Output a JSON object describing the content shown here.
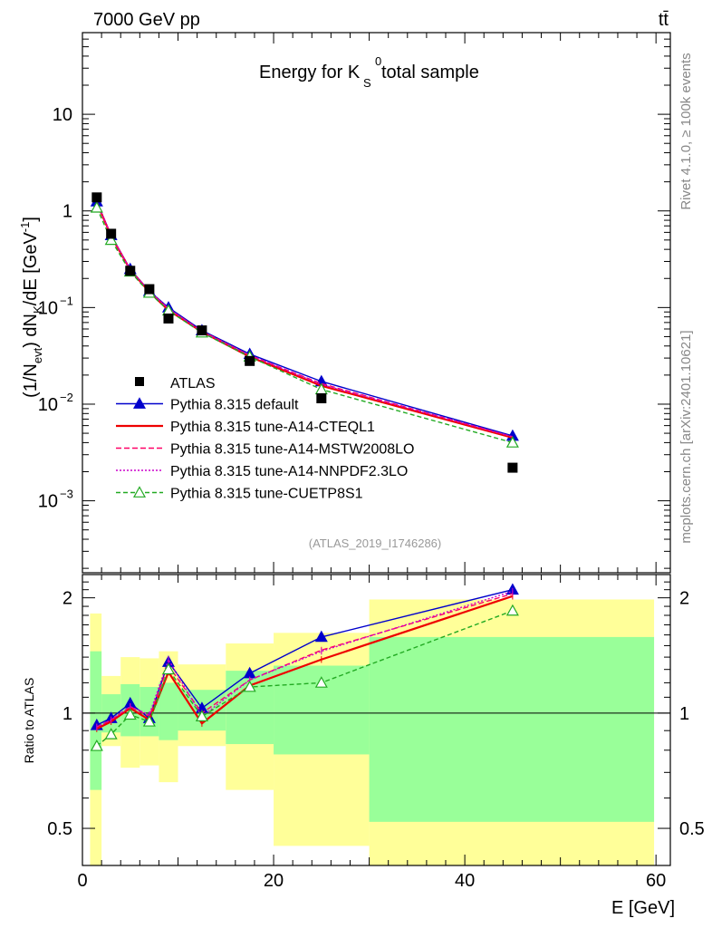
{
  "header": {
    "energy_label": "7000 GeV pp",
    "process_label": "tt̄",
    "plot_title": "Energy for K",
    "title_sup": "0",
    "title_sub": "S",
    "title_suffix": " total sample",
    "analysis_id": "(ATLAS_2019_I1746286)",
    "side_label_top": "Rivet 4.1.0, ≥ 100k events",
    "side_label_bottom": "mcplots.cern.ch [arXiv:2401.10621]"
  },
  "chart_data": {
    "type": "line",
    "x_label": "E [GeV]",
    "main_y_label": "(1/N_evt) dN_K/dE [GeV^-1]",
    "ratio_y_label": "Ratio to ATLAS",
    "x_range": [
      0,
      61.5
    ],
    "main_y_range": [
      0.00018,
      70
    ],
    "ratio_y_range": [
      0.4,
      2.3
    ],
    "x_ticks": [
      0,
      20,
      40,
      60
    ],
    "main_y_ticks": [
      {
        "value": 10,
        "label": "10"
      },
      {
        "value": 1,
        "label": "1"
      },
      {
        "value": 0.1,
        "label": "10",
        "exp": "−1"
      },
      {
        "value": 0.01,
        "label": "10",
        "exp": "−2"
      },
      {
        "value": 0.001,
        "label": "10",
        "exp": "−3"
      }
    ],
    "ratio_y_ticks": [
      {
        "value": 0.5,
        "label": "0.5"
      },
      {
        "value": 1,
        "label": "1"
      },
      {
        "value": 2,
        "label": "2"
      }
    ],
    "data": {
      "name": "ATLAS",
      "x": [
        1.5,
        3,
        5,
        7,
        9,
        12.5,
        17.5,
        25,
        45
      ],
      "y": [
        1.38,
        0.58,
        0.24,
        0.155,
        0.077,
        0.058,
        0.028,
        0.0115,
        0.0022
      ]
    },
    "bands": [
      {
        "x0": 0.8,
        "x1": 2,
        "yellow": [
          0.4,
          1.82
        ],
        "green": [
          0.63,
          1.45
        ]
      },
      {
        "x0": 2,
        "x1": 4,
        "yellow": [
          0.82,
          1.25
        ],
        "green": [
          0.89,
          1.12
        ]
      },
      {
        "x0": 4,
        "x1": 6,
        "yellow": [
          0.72,
          1.4
        ],
        "green": [
          0.87,
          1.19
        ]
      },
      {
        "x0": 6,
        "x1": 8,
        "yellow": [
          0.73,
          1.39
        ],
        "green": [
          0.87,
          1.17
        ]
      },
      {
        "x0": 8,
        "x1": 10,
        "yellow": [
          0.66,
          1.45
        ],
        "green": [
          0.85,
          1.2
        ]
      },
      {
        "x0": 10,
        "x1": 15,
        "yellow": [
          0.82,
          1.34
        ],
        "green": [
          0.9,
          1.15
        ]
      },
      {
        "x0": 15,
        "x1": 20,
        "yellow": [
          0.63,
          1.52
        ],
        "green": [
          0.83,
          1.29
        ]
      },
      {
        "x0": 20,
        "x1": 30,
        "yellow": [
          0.45,
          1.62
        ],
        "green": [
          0.78,
          1.33
        ]
      },
      {
        "x0": 30,
        "x1": 59.8,
        "yellow": [
          0.4,
          1.98
        ],
        "green": [
          0.52,
          1.58
        ]
      }
    ],
    "series": [
      {
        "name": "Pythia 8.315 default",
        "color": "#0000cc",
        "dash": "",
        "marker": "triangle",
        "y": [
          1.25,
          0.56,
          0.25,
          0.148,
          0.1,
          0.058,
          0.033,
          0.0172,
          0.0047
        ],
        "ratio": [
          0.93,
          0.97,
          1.06,
          0.97,
          1.36,
          1.03,
          1.27,
          1.58,
          2.1
        ]
      },
      {
        "name": "Pythia 8.315 tune-A14-CTEQL1",
        "color": "#ee0000",
        "dash": "",
        "marker": "none",
        "y": [
          1.22,
          0.55,
          0.245,
          0.145,
          0.094,
          0.056,
          0.031,
          0.0155,
          0.0045
        ],
        "ratio": [
          0.91,
          0.95,
          1.03,
          0.96,
          1.28,
          0.94,
          1.18,
          1.38,
          2.02
        ]
      },
      {
        "name": "Pythia 8.315 tune-A14-MSTW2008LO",
        "color": "#ff0066",
        "dash": "6,3",
        "marker": "none",
        "y": [
          1.24,
          0.56,
          0.247,
          0.147,
          0.097,
          0.057,
          0.032,
          0.0163,
          0.0046
        ],
        "ratio": [
          0.92,
          0.96,
          1.04,
          0.98,
          1.33,
          1.0,
          1.22,
          1.46,
          2.05
        ]
      },
      {
        "name": "Pythia 8.315 tune-A14-NNPDF2.3LO",
        "color": "#cc00cc",
        "dash": "2,2",
        "marker": "none",
        "y": [
          1.23,
          0.56,
          0.246,
          0.148,
          0.098,
          0.056,
          0.032,
          0.016,
          0.0046
        ],
        "ratio": [
          0.92,
          0.96,
          1.04,
          0.99,
          1.38,
          0.98,
          1.22,
          1.45,
          2.08
        ]
      },
      {
        "name": "Pythia 8.315 tune-CUETP8S1",
        "color": "#22aa22",
        "dash": "5,3",
        "marker": "open-triangle",
        "y": [
          1.08,
          0.5,
          0.235,
          0.142,
          0.093,
          0.055,
          0.031,
          0.0142,
          0.004
        ],
        "ratio": [
          0.82,
          0.88,
          0.99,
          0.95,
          1.3,
          0.98,
          1.17,
          1.2,
          1.85
        ]
      }
    ]
  }
}
